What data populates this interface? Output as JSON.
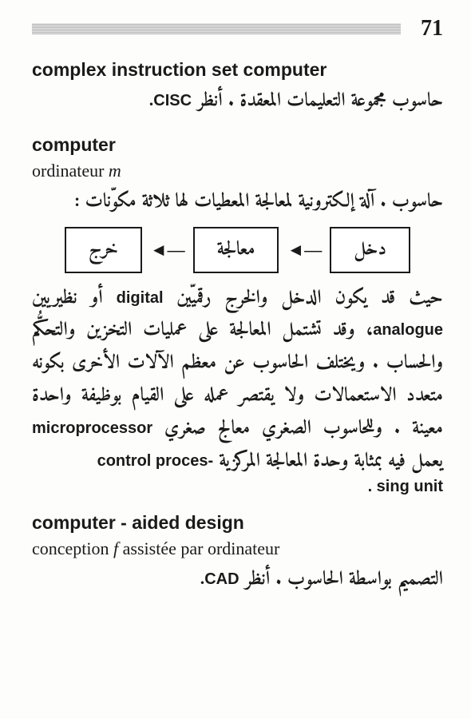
{
  "page_number": "71",
  "entries": [
    {
      "en": "complex instruction set computer",
      "ar_line": "حاسوب مجموعة التعليمات المعقدة . أنظر",
      "ar_ref": "CISC",
      "ar_tail": "."
    },
    {
      "en": "computer",
      "fr": "ordinateur",
      "fr_gender": "m",
      "ar_def1": "حاسوب . آلة إلكترونية لمعالجة المعطيات لها ثلاثة مكوّنات :",
      "diagram": {
        "in": "دخل",
        "proc": "معالجة",
        "out": "خرج"
      },
      "ar_body_pre": "حيث قد يكون الدخل والخرج رقميّين",
      "digital": "digital",
      "ar_body_mid1": "أو نظيريين",
      "analogue": "analogue",
      "ar_body_mid2": "، وقد تشتمل المعالجة على عمليات التخزين والتحكُّم والحساب . ويختلف الحاسوب عن معظم الآلات الأخرى بكونه متعدد الاستعمالات ولا يقتصر عمله على القيام بوظيفة واحدة معينة . وللحاسوب الصغري معالج صغري",
      "microprocessor": "microprocessor",
      "ar_body_mid3": "يعمل فيه بمثابة وحدة المعالجة المركزية",
      "cpu_head": "control proces-",
      "cpu_tail": ". sing unit"
    },
    {
      "en": "computer - aided design",
      "fr": "conception",
      "fr_gender": "f",
      "fr_tail": "assistée par ordinateur",
      "ar_line": "التصميم بواسطة الحاسوب . أنظر",
      "ar_ref": "CAD",
      "ar_tail": "."
    }
  ]
}
